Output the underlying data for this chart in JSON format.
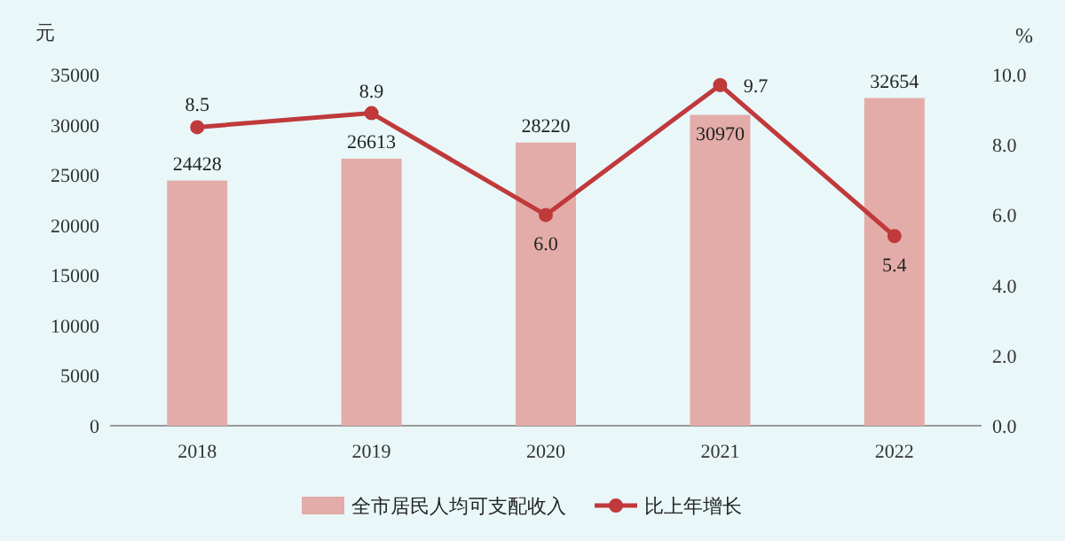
{
  "chart_data": {
    "type": "bar",
    "categories": [
      "2018",
      "2019",
      "2020",
      "2021",
      "2022"
    ],
    "ylabel": "元",
    "y2label": "%",
    "ylim": [
      0,
      35000
    ],
    "yticks": [
      0,
      5000,
      10000,
      15000,
      20000,
      25000,
      30000,
      35000
    ],
    "y2lim": [
      0,
      10
    ],
    "y2ticks": [
      {
        "value": 0,
        "label": "0.0"
      },
      {
        "value": 2,
        "label": "2.0"
      },
      {
        "value": 4,
        "label": "4.0"
      },
      {
        "value": 6,
        "label": "6.0"
      },
      {
        "value": 8,
        "label": "8.0"
      },
      {
        "value": 10,
        "label": "10.0"
      }
    ],
    "series": [
      {
        "name": "全市居民人均可支配收入",
        "type": "bar",
        "color": "#e3aca8",
        "values": [
          24428,
          26613,
          28220,
          30970,
          32654
        ],
        "value_labels": [
          "24428",
          "26613",
          "28220",
          "30970",
          "32654"
        ]
      },
      {
        "name": "比上年增长",
        "type": "line",
        "axis": "y2",
        "color": "#c0393b",
        "values": [
          8.5,
          8.9,
          6.0,
          9.7,
          5.4
        ],
        "value_labels": [
          "8.5",
          "8.9",
          "6.0",
          "9.7",
          "5.4"
        ]
      }
    ],
    "legend": "bottom",
    "marker": "circle"
  }
}
